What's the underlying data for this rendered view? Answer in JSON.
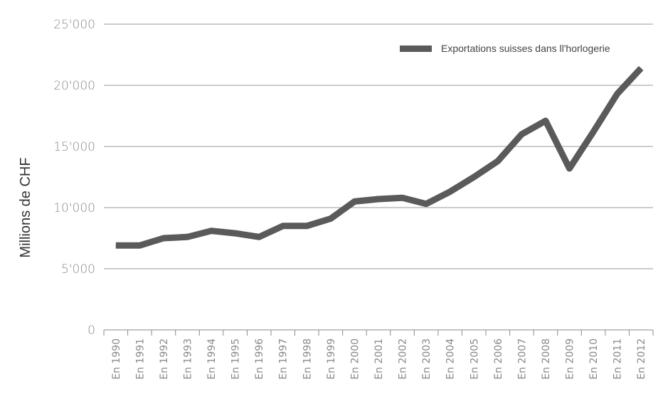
{
  "chart_data": {
    "type": "line",
    "ylabel": "Millions de CHF",
    "xlabel": "",
    "ylim": [
      0,
      25000
    ],
    "yticks": [
      0,
      5000,
      10000,
      15000,
      20000,
      25000
    ],
    "ytick_labels": [
      "0",
      "5'000",
      "10'000",
      "15'000",
      "20'000",
      "25'000"
    ],
    "grid": "horizontal",
    "legend_position": "top-right",
    "categories": [
      "En 1990",
      "En 1991",
      "En 1992",
      "En 1993",
      "En 1994",
      "En 1995",
      "En 1996",
      "En 1997",
      "En 1998",
      "En 1999",
      "En 2000",
      "En 2001",
      "En 2002",
      "En 2003",
      "En 2004",
      "En 2005",
      "En 2006",
      "En 2007",
      "En 2008",
      "En 2009",
      "En 2010",
      "En 2011",
      "En 2012"
    ],
    "series": [
      {
        "name": "Exportations suisses dans ll'horlogerie",
        "color": "#5a5a5a",
        "values": [
          6900,
          6900,
          7500,
          7600,
          8100,
          7900,
          7600,
          8500,
          8500,
          9100,
          10500,
          10700,
          10800,
          10300,
          11300,
          12500,
          13800,
          16000,
          17100,
          13200,
          16200,
          19300,
          21400
        ]
      }
    ]
  }
}
